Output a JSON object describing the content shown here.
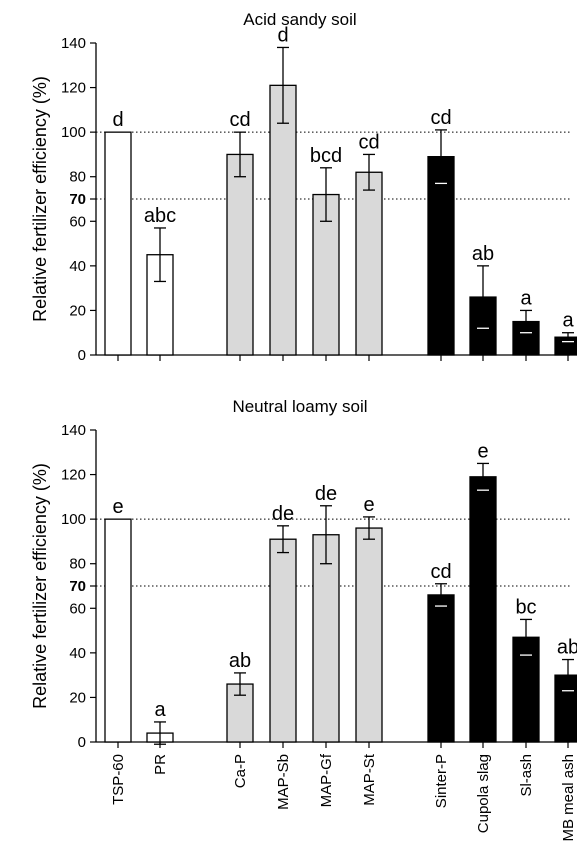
{
  "chart_data": [
    {
      "type": "bar",
      "title": "Acid sandy soil",
      "ylabel": "Relative fertilizer efficiency (%)",
      "xlabel": "",
      "ylim": [
        0,
        140
      ],
      "yticks": [
        "0",
        "20",
        "40",
        "60",
        "70",
        "80",
        "100",
        "120",
        "140"
      ],
      "reference_lines": [
        100,
        70
      ],
      "categories": [
        "TSP-60",
        "PR",
        "Ca-P",
        "MAP-Sb",
        "MAP-Gf",
        "MAP-St",
        "Sinter-P",
        "Cupola slag",
        "Sl-ash",
        "MB meal ash"
      ],
      "values": [
        100,
        45,
        90,
        121,
        72,
        82,
        89,
        26,
        15,
        8
      ],
      "errors": [
        0,
        12,
        10,
        17,
        12,
        8,
        12,
        14,
        5,
        2
      ],
      "labels": [
        "d",
        "abc",
        "cd",
        "d",
        "bcd",
        "cd",
        "cd",
        "ab",
        "a",
        "a"
      ],
      "colors": [
        "#ffffff",
        "#ffffff",
        "#d9d9d9",
        "#d9d9d9",
        "#d9d9d9",
        "#d9d9d9",
        "#000000",
        "#000000",
        "#000000",
        "#000000"
      ]
    },
    {
      "type": "bar",
      "title": "Neutral loamy soil",
      "ylabel": "Relative fertilizer efficiency (%)",
      "xlabel": "",
      "ylim": [
        0,
        140
      ],
      "yticks": [
        "0",
        "20",
        "40",
        "60",
        "70",
        "80",
        "100",
        "120",
        "140"
      ],
      "reference_lines": [
        100,
        70
      ],
      "categories": [
        "TSP-60",
        "PR",
        "Ca-P",
        "MAP-Sb",
        "MAP-Gf",
        "MAP-St",
        "Sinter-P",
        "Cupola slag",
        "Sl-ash",
        "MB meal ash"
      ],
      "values": [
        100,
        4,
        26,
        91,
        93,
        96,
        66,
        119,
        47,
        30
      ],
      "errors": [
        0,
        5,
        5,
        6,
        13,
        5,
        5,
        6,
        8,
        7
      ],
      "labels": [
        "e",
        "a",
        "ab",
        "de",
        "de",
        "e",
        "cd",
        "e",
        "bc",
        "ab"
      ],
      "colors": [
        "#ffffff",
        "#ffffff",
        "#d9d9d9",
        "#d9d9d9",
        "#d9d9d9",
        "#d9d9d9",
        "#000000",
        "#000000",
        "#000000",
        "#000000"
      ]
    }
  ]
}
